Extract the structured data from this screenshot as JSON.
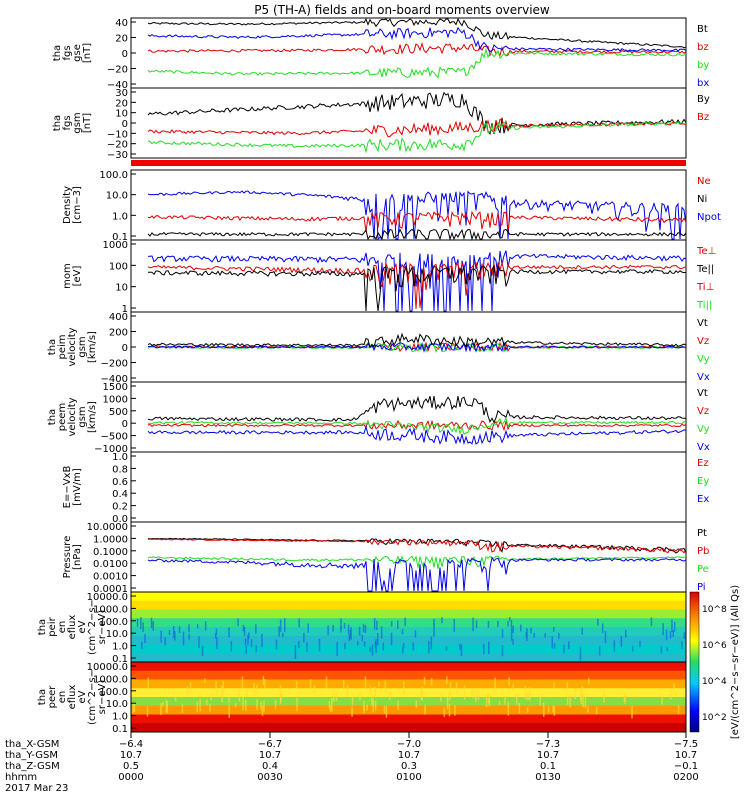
{
  "title": "P5 (TH-A) fields and on-board moments overview",
  "colors": {
    "black": "#000000",
    "red": "#e00000",
    "green": "#22dd22",
    "blue": "#0000ee"
  },
  "panels": [
    {
      "id": "fgs-gse",
      "ylabel": [
        "tha",
        "fgs",
        "gse",
        "[nT]"
      ],
      "yticks": [
        "40",
        "20",
        "0",
        "−20",
        "−40"
      ],
      "legend": [
        {
          "text": "Bt",
          "color": "#000000"
        },
        {
          "text": "bz",
          "color": "#e00000"
        },
        {
          "text": "by",
          "color": "#22dd22"
        },
        {
          "text": "bx",
          "color": "#0000ee"
        }
      ]
    },
    {
      "id": "fgs-gsm",
      "ylabel": [
        "tha",
        "fgs",
        "gsm",
        "[nT]"
      ],
      "yticks": [
        "30",
        "20",
        "10",
        "0",
        "−10",
        "−20",
        "−30"
      ],
      "legend": [
        {
          "text": "By",
          "color": "#000000"
        },
        {
          "text": "Bz",
          "color": "#e00000"
        }
      ]
    },
    {
      "id": "density",
      "ylabel": [
        "Density",
        "[cm−3]"
      ],
      "yticks": [
        "100.0",
        "10.0",
        "1.0",
        "0.1"
      ],
      "legend": [
        {
          "text": "Ne",
          "color": "#e00000"
        },
        {
          "text": "Ni",
          "color": "#000000"
        },
        {
          "text": "Npot",
          "color": "#0000ee"
        }
      ]
    },
    {
      "id": "temperature",
      "ylabel": [
        "mom",
        "[eV]"
      ],
      "yticks": [
        "1000",
        "100",
        "10",
        "1"
      ],
      "legend": [
        {
          "text": "Te⊥",
          "color": "#e00000"
        },
        {
          "text": "Te||",
          "color": "#000000"
        },
        {
          "text": "Ti⊥",
          "color": "#e00000"
        },
        {
          "text": "Ti||",
          "color": "#22dd22"
        }
      ]
    },
    {
      "id": "peim-velocity",
      "ylabel": [
        "tha",
        "peim",
        "velocity",
        "gsm",
        "[km/s]"
      ],
      "yticks": [
        "400",
        "200",
        "0",
        "−200",
        "−400"
      ],
      "legend": [
        {
          "text": "Vt",
          "color": "#000000"
        },
        {
          "text": "Vz",
          "color": "#e00000"
        },
        {
          "text": "Vy",
          "color": "#22dd22"
        },
        {
          "text": "Vx",
          "color": "#0000ee"
        }
      ]
    },
    {
      "id": "peem-velocity",
      "ylabel": [
        "tha",
        "peem",
        "velocity",
        "gsm",
        "[km/s]"
      ],
      "yticks": [
        "1500",
        "1000",
        "500",
        "0",
        "−500",
        "−1000"
      ],
      "legend": [
        {
          "text": "Vt",
          "color": "#000000"
        },
        {
          "text": "Vz",
          "color": "#e00000"
        },
        {
          "text": "Vy",
          "color": "#22dd22"
        },
        {
          "text": "Vx",
          "color": "#0000ee"
        }
      ]
    },
    {
      "id": "e-field",
      "ylabel": [
        "E=−VxB",
        "[mV/m]"
      ],
      "yticks": [
        "1.0",
        "0.8",
        "0.6",
        "0.4",
        "0.2",
        "0.0"
      ],
      "legend": [
        {
          "text": "Ez",
          "color": "#e00000"
        },
        {
          "text": "Ey",
          "color": "#22dd22"
        },
        {
          "text": "Ex",
          "color": "#0000ee"
        }
      ]
    },
    {
      "id": "pressure",
      "ylabel": [
        "Pressure",
        "[nPa]"
      ],
      "yticks": [
        "10.0000",
        "1.0000",
        "0.1000",
        "0.0100",
        "0.0010",
        "0.0001"
      ],
      "legend": [
        {
          "text": "Pt",
          "color": "#000000"
        },
        {
          "text": "Pb",
          "color": "#e00000"
        },
        {
          "text": "Pe",
          "color": "#22dd22"
        },
        {
          "text": "Pi",
          "color": "#0000ee"
        }
      ]
    },
    {
      "id": "peir-spec",
      "ylabel": [
        "tha",
        "peir",
        "en",
        "eflux",
        "eV",
        "(cm^2−s−",
        "sr−eV)"
      ],
      "yticks": [
        "10000.0",
        "1000.0",
        "100.0",
        "10.0",
        "1.0",
        "0.1"
      ],
      "legend": []
    },
    {
      "id": "peer-spec",
      "ylabel": [
        "tha",
        "peer",
        "en",
        "eflux",
        "eV",
        "(cm^2−s−",
        "sr−eV)"
      ],
      "yticks": [
        "10000.0",
        "1000.0",
        "100.0",
        "10.0",
        "1.0",
        "0.1"
      ],
      "legend": []
    }
  ],
  "colorbar": {
    "label": "[eV/(cm^2−s−sr−eV)] (All Qs)",
    "ticks": [
      "10^8",
      "10^6",
      "10^4",
      "10^2"
    ]
  },
  "xaxis": {
    "rows": [
      {
        "label": "tha_X-GSM",
        "values": [
          "−6.4",
          "−6.7",
          "−7.0",
          "−7.3",
          "−7.5"
        ]
      },
      {
        "label": "tha_Y-GSM",
        "values": [
          "10.7",
          "10.7",
          "10.7",
          "10.7",
          "10.7"
        ]
      },
      {
        "label": "tha_Z-GSM",
        "values": [
          "0.5",
          "0.4",
          "0.3",
          "0.1",
          "−0.1"
        ]
      },
      {
        "label": "hhmm",
        "values": [
          "0000",
          "0030",
          "0100",
          "0130",
          "0200"
        ]
      }
    ],
    "date": "2017 Mar 23"
  },
  "chart_data": {
    "type": "line",
    "title": "P5 (TH-A) fields and on-board moments overview",
    "x": [
      "0000",
      "0030",
      "0100",
      "0130",
      "0200"
    ],
    "panels": [
      {
        "ylabel": "tha fgs gse [nT]",
        "ylim": [
          -40,
          40
        ],
        "series": [
          {
            "name": "Bt",
            "values": [
              35,
              33,
              35,
              20,
              7
            ]
          },
          {
            "name": "bz",
            "values": [
              2,
              3,
              5,
              2,
              1
            ]
          },
          {
            "name": "by",
            "values": [
              -20,
              -24,
              -22,
              0,
              -2
            ]
          },
          {
            "name": "bx",
            "values": [
              20,
              18,
              24,
              5,
              3
            ]
          }
        ]
      },
      {
        "ylabel": "tha fgs gsm [nT]",
        "ylim": [
          -35,
          30
        ],
        "series": [
          {
            "name": "By",
            "values": [
              5,
              10,
              20,
              -5,
              -1
            ]
          },
          {
            "name": "Bz",
            "values": [
              -10,
              -12,
              -7,
              -5,
              -3
            ]
          }
        ]
      },
      {
        "ylabel": "Density [cm-3]",
        "ylim": [
          0.05,
          200
        ],
        "scale": "log",
        "series": [
          {
            "name": "Ne",
            "values": [
              0.8,
              0.6,
              0.8,
              0.6,
              0.5
            ]
          },
          {
            "name": "Ni",
            "values": [
              0.1,
              0.1,
              0.1,
              0.2,
              0.1
            ]
          },
          {
            "name": "Npot",
            "values": [
              10,
              15,
              5,
              4,
              1.5
            ]
          }
        ]
      },
      {
        "ylabel": "mom [eV]",
        "ylim": [
          1,
          3000
        ],
        "scale": "log",
        "series": [
          {
            "name": "Ti⊥",
            "values": [
              400,
              350,
              300,
              500,
              400
            ]
          },
          {
            "name": "Te||",
            "values": [
              150,
              100,
              100,
              150,
              150
            ]
          }
        ]
      },
      {
        "ylabel": "peim velocity gsm [km/s]",
        "ylim": [
          -400,
          400
        ],
        "series": [
          {
            "name": "Vt",
            "values": [
              30,
              20,
              100,
              30,
              20
            ]
          },
          {
            "name": "Vx",
            "values": [
              0,
              0,
              -50,
              0,
              0
            ]
          }
        ]
      },
      {
        "ylabel": "peem velocity gsm [km/s]",
        "ylim": [
          -1000,
          1500
        ],
        "series": [
          {
            "name": "Vt",
            "values": [
              200,
              150,
              800,
              250,
              200
            ]
          },
          {
            "name": "Vx",
            "values": [
              -300,
              -300,
              -500,
              -300,
              -200
            ]
          }
        ]
      },
      {
        "ylabel": "E=-VxB [mV/m]",
        "ylim": [
          0,
          1
        ],
        "series": []
      },
      {
        "ylabel": "Pressure [nPa]",
        "ylim": [
          0.0001,
          10
        ],
        "scale": "log",
        "series": [
          {
            "name": "Pt",
            "values": [
              0.7,
              0.5,
              0.4,
              0.2,
              0.1
            ]
          },
          {
            "name": "Pb",
            "values": [
              0.6,
              0.5,
              0.4,
              0.2,
              0.1
            ]
          },
          {
            "name": "Pe",
            "values": [
              0.03,
              0.02,
              0.02,
              0.03,
              0.03
            ]
          },
          {
            "name": "Pi",
            "values": [
              0.02,
              0.01,
              0.005,
              0.02,
              0.02
            ]
          }
        ]
      }
    ]
  }
}
